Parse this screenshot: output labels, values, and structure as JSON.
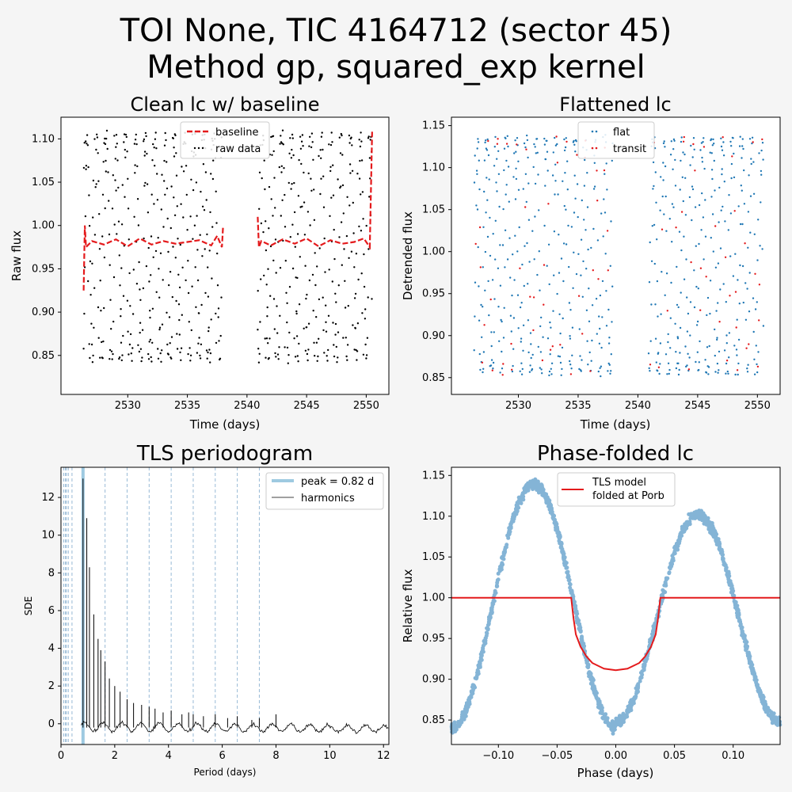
{
  "figure": {
    "title_line1": "TOI None, TIC 4164712 (sector 45)",
    "title_line2": "Method gp, squared_exp kernel"
  },
  "chart_data": [
    {
      "id": "clean",
      "type": "scatter",
      "title": "Clean lc w/ baseline",
      "xlabel": "Time (days)",
      "ylabel": "Raw flux",
      "xlim": [
        2524.4,
        2551.9
      ],
      "ylim": [
        0.805,
        1.125
      ],
      "xticks": [
        2530,
        2535,
        2540,
        2545,
        2550
      ],
      "xtick_labels": [
        "2530",
        "2535",
        "2540",
        "2545",
        "2550"
      ],
      "yticks": [
        0.85,
        0.9,
        0.95,
        1.0,
        1.05,
        1.1
      ],
      "ytick_labels": [
        "0.85",
        "0.90",
        "0.95",
        "1.00",
        "1.05",
        "1.10"
      ],
      "legend": {
        "placement": "upper center",
        "entries": [
          "baseline",
          "raw data"
        ]
      },
      "series": [
        {
          "name": "baseline",
          "kind": "line",
          "color": "#e41a1c",
          "x": [
            2526.3,
            2526.4,
            2526.5,
            2527,
            2528,
            2529,
            2530,
            2531,
            2532,
            2533,
            2534,
            2535,
            2536,
            2537,
            2537.5,
            2537.9,
            2538.0
          ],
          "y": [
            0.925,
            1.0,
            0.975,
            0.982,
            0.978,
            0.984,
            0.976,
            0.985,
            0.978,
            0.982,
            0.979,
            0.981,
            0.983,
            0.977,
            0.988,
            0.975,
            1.0
          ]
        },
        {
          "name": "baseline",
          "kind": "line",
          "color": "#e41a1c",
          "x": [
            2540.9,
            2541.0,
            2541.2,
            2542,
            2543,
            2544,
            2545,
            2546,
            2547,
            2548,
            2549,
            2549.8,
            2550.3,
            2550.5
          ],
          "y": [
            1.01,
            0.975,
            0.982,
            0.977,
            0.984,
            0.979,
            0.985,
            0.976,
            0.983,
            0.979,
            0.981,
            0.985,
            0.975,
            1.11
          ]
        }
      ],
      "raw_data_model": {
        "name": "raw data",
        "segments": [
          [
            2526.3,
            2537.9
          ],
          [
            2540.9,
            2550.5
          ]
        ],
        "description": "dense sinusoidal pattern of flux between 0.83 and 1.115 with period 0.82 d"
      }
    },
    {
      "id": "flat",
      "type": "scatter",
      "title": "Flattened lc",
      "xlabel": "Time (days)",
      "ylabel": "Detrended flux",
      "xlim": [
        2524.4,
        2551.9
      ],
      "ylim": [
        0.83,
        1.16
      ],
      "xticks": [
        2530,
        2535,
        2540,
        2545,
        2550
      ],
      "xtick_labels": [
        "2530",
        "2535",
        "2540",
        "2545",
        "2550"
      ],
      "yticks": [
        0.85,
        0.9,
        0.95,
        1.0,
        1.05,
        1.1,
        1.15
      ],
      "ytick_labels": [
        "0.85",
        "0.90",
        "0.95",
        "1.00",
        "1.05",
        "1.10",
        "1.15"
      ],
      "legend": {
        "placement": "upper center",
        "entries": [
          "flat",
          "transit"
        ]
      },
      "colors": {
        "flat": "#1f77b4",
        "transit": "#e41a1c"
      }
    },
    {
      "id": "tls",
      "type": "line",
      "title": "TLS periodogram",
      "xlabel": "Period (days)",
      "ylabel": "SDE",
      "xlim": [
        0,
        12.2
      ],
      "ylim": [
        -1.1,
        13.6
      ],
      "xticks": [
        0,
        2,
        4,
        6,
        8,
        10,
        12
      ],
      "xtick_labels": [
        "0",
        "2",
        "4",
        "6",
        "8",
        "10",
        "12"
      ],
      "yticks": [
        0,
        2,
        4,
        6,
        8,
        10,
        12
      ],
      "ytick_labels": [
        "0",
        "2",
        "4",
        "6",
        "8",
        "10",
        "12"
      ],
      "legend": {
        "placement": "upper right",
        "entries": [
          "peak = 0.82 d",
          "harmonics"
        ]
      },
      "peak_period": 0.82,
      "harmonics": [
        0.1025,
        0.164,
        0.205,
        0.273,
        0.41,
        1.64,
        2.46,
        3.28,
        4.1,
        4.92,
        5.74,
        6.56,
        7.38
      ],
      "peaks": [
        {
          "x": 0.82,
          "y": 13.0
        },
        {
          "x": 0.96,
          "y": 10.9
        },
        {
          "x": 1.06,
          "y": 8.3
        },
        {
          "x": 1.22,
          "y": 5.8
        },
        {
          "x": 1.38,
          "y": 4.5
        },
        {
          "x": 1.48,
          "y": 3.9
        },
        {
          "x": 1.64,
          "y": 3.3
        },
        {
          "x": 1.8,
          "y": 2.4
        },
        {
          "x": 2.0,
          "y": 2.0
        },
        {
          "x": 2.2,
          "y": 1.7
        },
        {
          "x": 2.46,
          "y": 1.3
        },
        {
          "x": 2.7,
          "y": 1.1
        },
        {
          "x": 3.0,
          "y": 1.0
        },
        {
          "x": 3.28,
          "y": 0.9
        },
        {
          "x": 3.5,
          "y": 0.8
        },
        {
          "x": 3.8,
          "y": 0.6
        },
        {
          "x": 4.1,
          "y": 0.7
        },
        {
          "x": 4.5,
          "y": 0.5
        },
        {
          "x": 4.75,
          "y": 0.6
        },
        {
          "x": 4.92,
          "y": 0.5
        },
        {
          "x": 5.3,
          "y": 0.4
        },
        {
          "x": 5.74,
          "y": 0.5
        },
        {
          "x": 6.2,
          "y": 0.3
        },
        {
          "x": 6.56,
          "y": 0.4
        },
        {
          "x": 7.1,
          "y": 0.2
        },
        {
          "x": 7.38,
          "y": 0.3
        },
        {
          "x": 8.0,
          "y": 0.5
        }
      ],
      "colors": {
        "peak": "#9ecae1",
        "harmonics": "#7fa9cc",
        "spectrum": "#000000"
      }
    },
    {
      "id": "phase",
      "type": "scatter",
      "title": "Phase-folded lc",
      "xlabel": "Phase (days)",
      "ylabel": "Relative flux",
      "xlim": [
        -0.14,
        0.14
      ],
      "ylim": [
        0.82,
        1.16
      ],
      "xticks": [
        -0.1,
        -0.05,
        0.0,
        0.05,
        0.1
      ],
      "xtick_labels": [
        "−0.10",
        "−0.05",
        "0.00",
        "0.05",
        "0.10"
      ],
      "yticks": [
        0.85,
        0.9,
        0.95,
        1.0,
        1.05,
        1.1,
        1.15
      ],
      "ytick_labels": [
        "0.85",
        "0.90",
        "0.95",
        "1.00",
        "1.05",
        "1.10",
        "1.15"
      ],
      "legend": {
        "placement": "upper center",
        "entries": [
          "TLS model\nfolded at Porb"
        ]
      },
      "legend_lines": [
        "TLS model",
        "folded at Porb"
      ],
      "model": {
        "x": [
          -0.14,
          -0.038,
          -0.036,
          -0.034,
          -0.03,
          -0.025,
          -0.02,
          -0.01,
          0.0,
          0.01,
          0.02,
          0.025,
          0.03,
          0.034,
          0.036,
          0.038,
          0.14
        ],
        "y": [
          1.0,
          1.0,
          0.975,
          0.955,
          0.94,
          0.928,
          0.92,
          0.913,
          0.911,
          0.913,
          0.92,
          0.928,
          0.94,
          0.955,
          0.975,
          1.0,
          1.0
        ],
        "color": "#e41a1c"
      },
      "points_model": {
        "description": "folded flux, minimum 0.84 at phase 0, maxima 1.14 at -0.07 and 1.11 at 0.07",
        "color": "#1f77b4"
      }
    }
  ]
}
